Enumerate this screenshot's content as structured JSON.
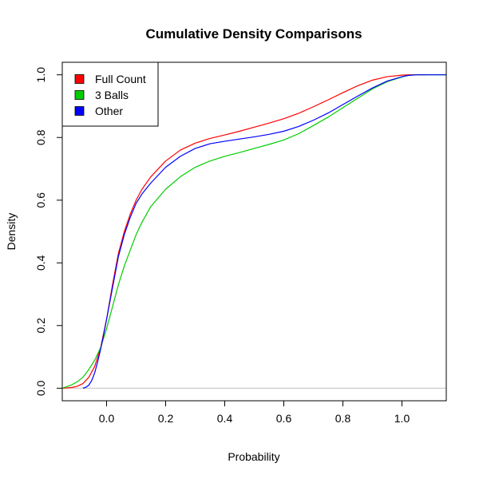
{
  "chart_data": {
    "type": "line",
    "title": "Cumulative Density Comparisons",
    "xlabel": "Probability",
    "ylabel": "Density",
    "xlim": [
      -0.15,
      1.15
    ],
    "ylim": [
      -0.04,
      1.04
    ],
    "xticks": [
      0.0,
      0.2,
      0.4,
      0.6,
      0.8,
      1.0
    ],
    "yticks": [
      0.0,
      0.2,
      0.4,
      0.6,
      0.8,
      1.0
    ],
    "xtick_labels": [
      "0.0",
      "0.2",
      "0.4",
      "0.6",
      "0.8",
      "1.0"
    ],
    "ytick_labels": [
      "0.0",
      "0.2",
      "0.4",
      "0.6",
      "0.8",
      "1.0"
    ],
    "reference_line": {
      "y": 0,
      "color": "#bebebe"
    },
    "legend_position": "top-left",
    "series": [
      {
        "name": "Full Count",
        "color": "#ff0000",
        "x": [
          -0.15,
          -0.12,
          -0.1,
          -0.08,
          -0.06,
          -0.04,
          -0.02,
          0.0,
          0.02,
          0.04,
          0.06,
          0.08,
          0.1,
          0.12,
          0.15,
          0.2,
          0.25,
          0.3,
          0.35,
          0.4,
          0.45,
          0.5,
          0.55,
          0.6,
          0.65,
          0.7,
          0.75,
          0.8,
          0.85,
          0.9,
          0.95,
          1.0,
          1.02,
          1.04,
          1.06,
          1.08
        ],
        "y": [
          0.0,
          0.002,
          0.006,
          0.015,
          0.035,
          0.07,
          0.13,
          0.22,
          0.33,
          0.43,
          0.5,
          0.555,
          0.6,
          0.635,
          0.675,
          0.725,
          0.76,
          0.782,
          0.797,
          0.808,
          0.82,
          0.833,
          0.846,
          0.86,
          0.877,
          0.898,
          0.92,
          0.943,
          0.965,
          0.983,
          0.994,
          0.999,
          1.0,
          1.0,
          1.0,
          1.0
        ]
      },
      {
        "name": "3 Balls",
        "color": "#00cd00",
        "x": [
          -0.15,
          -0.12,
          -0.1,
          -0.08,
          -0.06,
          -0.04,
          -0.02,
          0.0,
          0.02,
          0.04,
          0.06,
          0.08,
          0.1,
          0.12,
          0.15,
          0.2,
          0.25,
          0.3,
          0.35,
          0.4,
          0.45,
          0.5,
          0.55,
          0.6,
          0.65,
          0.7,
          0.75,
          0.8,
          0.85,
          0.9,
          0.95,
          1.0,
          1.02,
          1.05,
          1.1,
          1.15
        ],
        "y": [
          0.0,
          0.01,
          0.02,
          0.035,
          0.06,
          0.09,
          0.13,
          0.19,
          0.26,
          0.33,
          0.39,
          0.44,
          0.49,
          0.53,
          0.58,
          0.635,
          0.675,
          0.705,
          0.725,
          0.74,
          0.752,
          0.765,
          0.778,
          0.792,
          0.812,
          0.838,
          0.865,
          0.895,
          0.925,
          0.955,
          0.978,
          0.993,
          0.998,
          1.0,
          1.0,
          1.0
        ]
      },
      {
        "name": "Other",
        "color": "#0000ff",
        "x": [
          -0.08,
          -0.07,
          -0.06,
          -0.05,
          -0.04,
          -0.03,
          -0.02,
          -0.01,
          0.0,
          0.02,
          0.04,
          0.06,
          0.08,
          0.1,
          0.12,
          0.15,
          0.2,
          0.25,
          0.3,
          0.35,
          0.4,
          0.45,
          0.5,
          0.55,
          0.6,
          0.65,
          0.7,
          0.75,
          0.8,
          0.85,
          0.9,
          0.95,
          1.0,
          1.02,
          1.05,
          1.1,
          1.15
        ],
        "y": [
          0.0,
          0.003,
          0.01,
          0.025,
          0.05,
          0.085,
          0.125,
          0.17,
          0.22,
          0.32,
          0.42,
          0.49,
          0.545,
          0.59,
          0.62,
          0.655,
          0.705,
          0.74,
          0.765,
          0.78,
          0.788,
          0.795,
          0.802,
          0.81,
          0.82,
          0.835,
          0.855,
          0.878,
          0.905,
          0.932,
          0.958,
          0.98,
          0.994,
          0.998,
          1.0,
          1.0,
          1.0
        ]
      }
    ]
  }
}
